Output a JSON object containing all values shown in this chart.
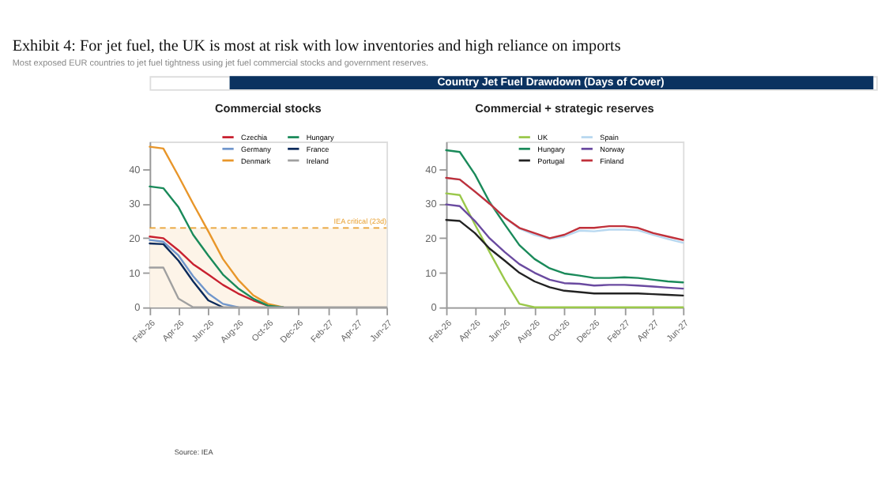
{
  "chart_data": [
    {
      "type": "line",
      "title": "Commercial stocks",
      "annotations": [
        "Exhibit 4: For jet fuel, the UK is most at risk with low inventories and high reliance on imports",
        "Most exposed EUR countries to jet fuel tightness using jet fuel commercial stocks and government reserves.",
        "Country Jet Fuel Drawdown (Days of Cover)",
        "Source: IEA"
      ],
      "x": [
        "2026-02",
        "2026-03",
        "2026-04",
        "2026-05",
        "2026-06",
        "2026-07",
        "2026-08",
        "2026-09",
        "2026-10",
        "2026-11",
        "2026-12",
        "2027-01",
        "2027-02",
        "2027-03",
        "2027-04",
        "2027-05",
        "2027-06"
      ],
      "xlim": [
        "2026-02",
        "2027-06"
      ],
      "xticks": [
        {
          "value": "2026-02",
          "label": "Feb-26"
        },
        {
          "value": "2026-04",
          "label": "Apr-26"
        },
        {
          "value": "2026-06",
          "label": "Jun-26"
        },
        {
          "value": "2026-08",
          "label": "Aug-26"
        },
        {
          "value": "2026-10",
          "label": "Oct-26"
        },
        {
          "value": "2026-12",
          "label": "Dec-26"
        },
        {
          "value": "2027-02",
          "label": "Feb-27"
        },
        {
          "value": "2027-04",
          "label": "Apr-27"
        },
        {
          "value": "2027-06",
          "label": "Jun-27"
        }
      ],
      "ylim": [
        0,
        48
      ],
      "yticks": [
        0,
        10,
        20,
        30,
        40
      ],
      "legend": "top",
      "bands": [
        {
          "axis": "y",
          "from": 0,
          "to": 23,
          "color": "#fdf4e8"
        }
      ],
      "ref_lines": [
        {
          "axis": "y",
          "value": 23,
          "label": "IEA critical (23d)",
          "color": "#e8a030",
          "line_style": "dashed"
        }
      ],
      "series": [
        {
          "name": "Czechia",
          "color": "#c8202f",
          "values": [
            20.5,
            20,
            16.5,
            12.5,
            9.5,
            6.5,
            4,
            2,
            0.5,
            0,
            null,
            null,
            null,
            null,
            null,
            null,
            null
          ]
        },
        {
          "name": "Germany",
          "color": "#7096cc",
          "values": [
            19.5,
            19,
            15,
            9,
            4,
            1,
            0,
            null,
            null,
            null,
            null,
            null,
            null,
            null,
            null,
            null,
            null
          ]
        },
        {
          "name": "Denmark",
          "color": "#e8962a",
          "values": [
            46.5,
            46,
            38,
            30,
            22,
            14,
            8,
            3.5,
            1,
            0,
            null,
            null,
            null,
            null,
            null,
            null,
            null
          ]
        },
        {
          "name": "Hungary",
          "color": "#1a8a5a",
          "values": [
            35,
            34.5,
            29,
            21,
            15,
            9.5,
            5.5,
            2.5,
            0.5,
            0,
            null,
            null,
            null,
            null,
            null,
            null,
            null
          ]
        },
        {
          "name": "France",
          "color": "#0b2a5b",
          "values": [
            18.5,
            18.3,
            13.5,
            7.5,
            2,
            0,
            null,
            null,
            null,
            null,
            null,
            null,
            null,
            null,
            null,
            null,
            null
          ]
        },
        {
          "name": "Ireland",
          "color": "#a0a0a0",
          "values": [
            11.5,
            11.5,
            2.5,
            0,
            0,
            0,
            0,
            0,
            0,
            0,
            0,
            0,
            0,
            0,
            0,
            0,
            0
          ]
        }
      ]
    },
    {
      "type": "line",
      "title": "Commercial + strategic reserves",
      "x": [
        "2026-02",
        "2026-03",
        "2026-04",
        "2026-05",
        "2026-06",
        "2026-07",
        "2026-08",
        "2026-09",
        "2026-10",
        "2026-11",
        "2026-12",
        "2027-01",
        "2027-02",
        "2027-03",
        "2027-04",
        "2027-05",
        "2027-06"
      ],
      "xlim": [
        "2026-02",
        "2027-06"
      ],
      "xticks": [
        {
          "value": "2026-02",
          "label": "Feb-26"
        },
        {
          "value": "2026-04",
          "label": "Apr-26"
        },
        {
          "value": "2026-06",
          "label": "Jun-26"
        },
        {
          "value": "2026-08",
          "label": "Aug-26"
        },
        {
          "value": "2026-10",
          "label": "Oct-26"
        },
        {
          "value": "2026-12",
          "label": "Dec-26"
        },
        {
          "value": "2027-02",
          "label": "Feb-27"
        },
        {
          "value": "2027-04",
          "label": "Apr-27"
        },
        {
          "value": "2027-06",
          "label": "Jun-27"
        }
      ],
      "ylim": [
        0,
        48
      ],
      "yticks": [
        0,
        10,
        20,
        30,
        40
      ],
      "legend": "top",
      "series": [
        {
          "name": "UK",
          "color": "#9ac84a",
          "values": [
            33,
            32.5,
            24,
            16,
            8,
            1,
            0,
            0,
            0,
            0,
            0,
            0,
            0,
            0,
            0,
            0,
            0
          ]
        },
        {
          "name": "Hungary",
          "color": "#1a8a5a",
          "values": [
            45.5,
            45,
            38.5,
            30.5,
            24,
            18,
            14,
            11.3,
            9.8,
            9.2,
            8.5,
            8.5,
            8.7,
            8.5,
            8,
            7.5,
            7.2
          ]
        },
        {
          "name": "Portugal",
          "color": "#222222",
          "values": [
            25.3,
            25,
            21.5,
            17,
            13.5,
            10,
            7.5,
            5.8,
            4.8,
            4.4,
            4,
            4,
            4,
            4,
            3.8,
            3.6,
            3.4
          ]
        },
        {
          "name": "Spain",
          "color": "#b8d8f0",
          "values": [
            37.5,
            37,
            33.5,
            30,
            26,
            22.8,
            21,
            19.8,
            20.5,
            22.2,
            22,
            22.5,
            22.5,
            22.3,
            21,
            19.8,
            18.7
          ]
        },
        {
          "name": "Norway",
          "color": "#6a4aa0",
          "values": [
            29.8,
            29.3,
            25,
            20,
            16,
            12.5,
            10,
            8,
            7,
            6.8,
            6.3,
            6.5,
            6.5,
            6.3,
            6,
            5.7,
            5.4
          ]
        },
        {
          "name": "Finland",
          "color": "#c0303a",
          "values": [
            37.5,
            37,
            33.5,
            30,
            26,
            23,
            21.5,
            20,
            21,
            23,
            23,
            23.5,
            23.5,
            23,
            21.5,
            20.5,
            19.5
          ]
        }
      ]
    }
  ]
}
